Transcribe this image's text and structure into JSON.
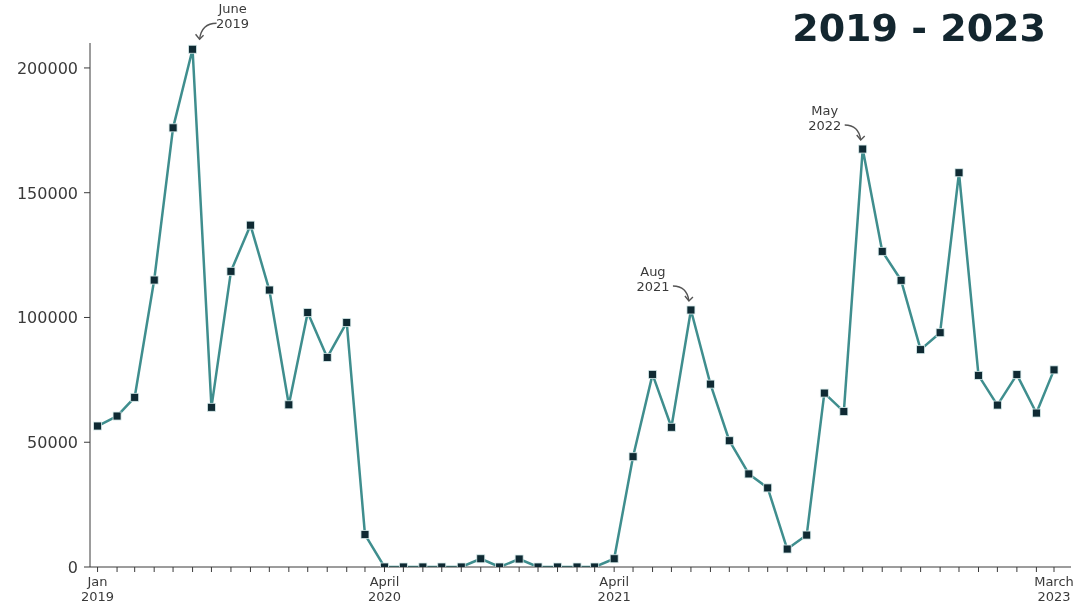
{
  "chart_data": {
    "type": "line",
    "title": "2019 - 2023",
    "x": [
      "2019-01",
      "2019-02",
      "2019-03",
      "2019-04",
      "2019-05",
      "2019-06",
      "2019-07",
      "2019-08",
      "2019-09",
      "2019-10",
      "2019-11",
      "2019-12",
      "2020-01",
      "2020-02",
      "2020-03",
      "2020-04",
      "2020-05",
      "2020-06",
      "2020-07",
      "2020-08",
      "2020-09",
      "2020-10",
      "2020-11",
      "2020-12",
      "2021-01",
      "2021-02",
      "2021-03",
      "2021-04",
      "2021-05",
      "2021-06",
      "2021-07",
      "2021-08",
      "2021-09",
      "2021-10",
      "2021-11",
      "2021-12",
      "2022-01",
      "2022-02",
      "2022-03",
      "2022-04",
      "2022-05",
      "2022-06",
      "2022-07",
      "2022-08",
      "2022-09",
      "2022-10",
      "2022-11",
      "2022-12",
      "2023-01",
      "2023-02",
      "2023-03"
    ],
    "series": [
      {
        "color": "#3f8e8e",
        "values": [
          56500,
          60500,
          68000,
          115000,
          176000,
          207500,
          64000,
          118500,
          137000,
          111000,
          65000,
          102000,
          84000,
          98000,
          13000,
          0,
          0,
          0,
          0,
          0,
          3300,
          0,
          3200,
          0,
          0,
          0,
          0,
          3300,
          44200,
          77200,
          56000,
          103000,
          73300,
          50600,
          37300,
          31700,
          7200,
          12800,
          69700,
          62300,
          167500,
          126500,
          114900,
          87100,
          93900,
          158000,
          76800,
          64900,
          77100,
          61700,
          79000
        ]
      }
    ],
    "xlim": [
      "2018-12-20",
      "2023-03-28"
    ],
    "xticks": [
      {
        "value": "2019-01",
        "label": "Jan 2019"
      },
      {
        "value": "2019-02",
        "label": null
      },
      {
        "value": "2019-03",
        "label": null
      },
      {
        "value": "2019-04",
        "label": null
      },
      {
        "value": "2019-05",
        "label": null
      },
      {
        "value": "2019-06",
        "label": null
      },
      {
        "value": "2019-07",
        "label": null
      },
      {
        "value": "2019-08",
        "label": null
      },
      {
        "value": "2019-09",
        "label": null
      },
      {
        "value": "2019-10",
        "label": null
      },
      {
        "value": "2019-11",
        "label": null
      },
      {
        "value": "2019-12",
        "label": null
      },
      {
        "value": "2020-01",
        "label": null
      },
      {
        "value": "2020-02",
        "label": null
      },
      {
        "value": "2020-03",
        "label": null
      },
      {
        "value": "2020-04",
        "label": "April 2020"
      },
      {
        "value": "2020-05",
        "label": null
      },
      {
        "value": "2020-06",
        "label": null
      },
      {
        "value": "2020-07",
        "label": null
      },
      {
        "value": "2020-08",
        "label": null
      },
      {
        "value": "2020-09",
        "label": null
      },
      {
        "value": "2020-10",
        "label": null
      },
      {
        "value": "2020-11",
        "label": null
      },
      {
        "value": "2020-12",
        "label": null
      },
      {
        "value": "2021-01",
        "label": null
      },
      {
        "value": "2021-02",
        "label": null
      },
      {
        "value": "2021-03",
        "label": null
      },
      {
        "value": "2021-04",
        "label": "April 2021"
      },
      {
        "value": "2021-05",
        "label": null
      },
      {
        "value": "2021-06",
        "label": null
      },
      {
        "value": "2021-07",
        "label": null
      },
      {
        "value": "2021-08",
        "label": null
      },
      {
        "value": "2021-09",
        "label": null
      },
      {
        "value": "2021-10",
        "label": null
      },
      {
        "value": "2021-11",
        "label": null
      },
      {
        "value": "2021-12",
        "label": null
      },
      {
        "value": "2022-01",
        "label": null
      },
      {
        "value": "2022-02",
        "label": null
      },
      {
        "value": "2022-03",
        "label": null
      },
      {
        "value": "2022-04",
        "label": null
      },
      {
        "value": "2022-05",
        "label": null
      },
      {
        "value": "2022-06",
        "label": null
      },
      {
        "value": "2022-07",
        "label": null
      },
      {
        "value": "2022-08",
        "label": null
      },
      {
        "value": "2022-09",
        "label": null
      },
      {
        "value": "2022-10",
        "label": null
      },
      {
        "value": "2022-11",
        "label": null
      },
      {
        "value": "2022-12",
        "label": null
      },
      {
        "value": "2023-01",
        "label": null
      },
      {
        "value": "2023-02",
        "label": null
      },
      {
        "value": "2023-03",
        "label": "March 2023"
      }
    ],
    "ylim": [
      0,
      210000
    ],
    "yticks": [
      0,
      50000,
      100000,
      150000,
      200000
    ],
    "annotations": [
      {
        "text": "June 2019",
        "x": "2019-06",
        "y": 207500
      },
      {
        "text": "Aug 2021",
        "x": "2021-08",
        "y": 103000
      },
      {
        "text": "May 2022",
        "x": "2022-05",
        "y": 167500
      }
    ],
    "marker": "square",
    "line_style": "solid",
    "grid": false,
    "legend": false
  }
}
